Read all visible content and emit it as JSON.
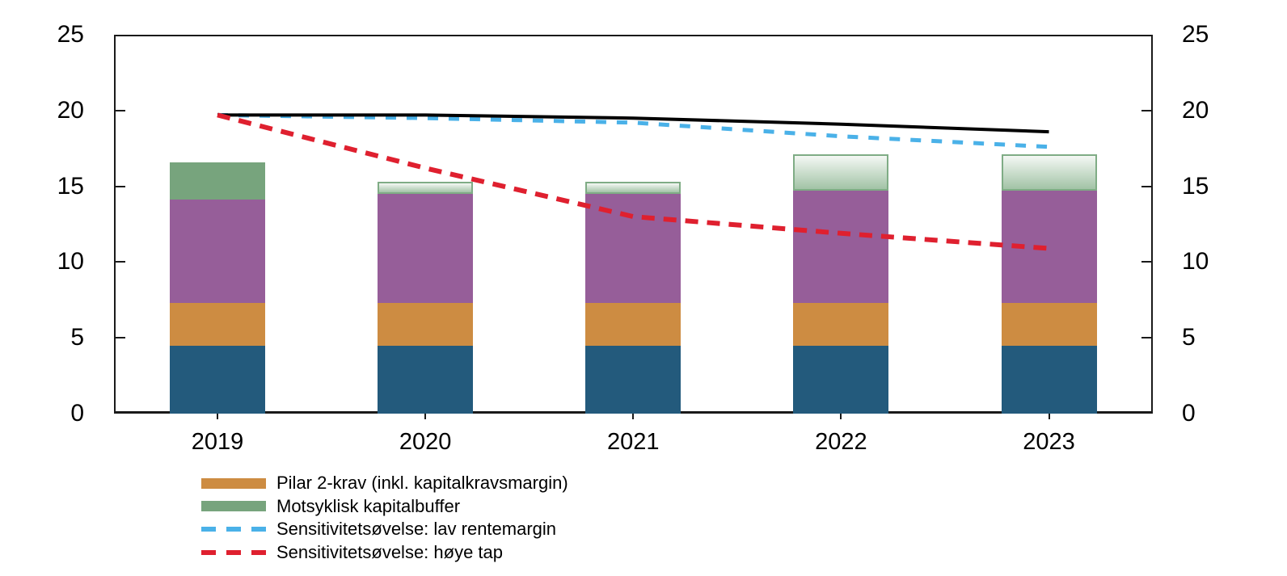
{
  "chart_data": {
    "type": "bar",
    "stacked": true,
    "title": "",
    "xlabel": "",
    "ylabel": "",
    "categories": [
      "2019",
      "2020",
      "2021",
      "2022",
      "2023"
    ],
    "bar_series": [
      {
        "id": "dark-blue-segment",
        "color": "#235a7c",
        "style": "solid",
        "values": [
          4.5,
          4.5,
          4.5,
          4.5,
          4.5
        ]
      },
      {
        "id": "orange-segment",
        "color": "#cd8c42",
        "style": "solid",
        "values": [
          2.8,
          2.8,
          2.8,
          2.8,
          2.8
        ]
      },
      {
        "id": "purple-segment",
        "color": "#965e99",
        "style": "solid",
        "values": [
          6.8,
          7.2,
          7.2,
          7.4,
          7.4
        ]
      },
      {
        "id": "green-segment",
        "color": "#77a47d",
        "style": "solid",
        "values": [
          2.5,
          0,
          0,
          0,
          0
        ]
      },
      {
        "id": "light-green-gradient-segment",
        "color": "#a2c3a6",
        "style": "gradient-outline",
        "values": [
          0,
          0.8,
          0.8,
          2.4,
          2.4
        ]
      }
    ],
    "line_series": [
      {
        "id": "black-solid-line",
        "color": "#000000",
        "style": "solid",
        "width": 4,
        "values": [
          19.7,
          19.7,
          19.5,
          19.1,
          18.6
        ]
      },
      {
        "id": "blue-dashed-line",
        "color": "#4ab1e8",
        "style": "dashed",
        "width": 5,
        "values": [
          19.7,
          19.5,
          19.2,
          18.3,
          17.6
        ]
      },
      {
        "id": "red-dashed-line",
        "color": "#df202f",
        "style": "dashed",
        "width": 6,
        "values": [
          19.7,
          16.2,
          13.0,
          11.9,
          10.9
        ]
      }
    ],
    "y_ticks": [
      0,
      5,
      10,
      15,
      20,
      25
    ],
    "y_tick_labels": [
      "0",
      "5",
      "10",
      "15",
      "20",
      "25"
    ],
    "ylim": [
      0,
      25
    ],
    "grid": false,
    "dual_axis_labels": true,
    "legend_position": "bottom-left"
  },
  "legend": {
    "items": [
      {
        "swatch": "bar",
        "color": "#cd8c42",
        "label": "Pilar 2-krav (inkl. kapitalkravsmargin)"
      },
      {
        "swatch": "bar",
        "color": "#77a47d",
        "label": "Motsyklisk kapitalbuffer"
      },
      {
        "swatch": "dashes",
        "color": "#4ab1e8",
        "label": "Sensitivitetsøvelse: lav rentemargin"
      },
      {
        "swatch": "dashes",
        "color": "#df202f",
        "label": "Sensitivitetsøvelse: høye tap"
      }
    ]
  },
  "colors": {
    "frame": "#1a1a1a",
    "background": "#ffffff",
    "gradient_top": "#f4f8f4",
    "gradient_bottom": "#a2c3a6",
    "gradient_border": "#7fac85"
  }
}
